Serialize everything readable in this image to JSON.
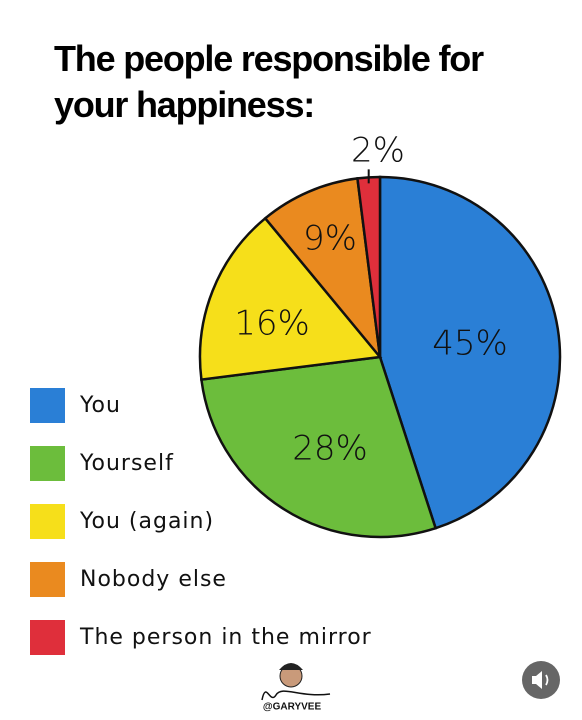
{
  "chart_data": {
    "type": "pie",
    "title": "The people responsible for your happiness:",
    "categories": [
      "You",
      "Yourself",
      "You (again)",
      "Nobody else",
      "The person in the mirror"
    ],
    "values": [
      45,
      28,
      16,
      9,
      2
    ],
    "value_labels": [
      "45%",
      "28%",
      "16%",
      "9%",
      "2%"
    ],
    "colors": [
      "#2a7fd6",
      "#6cbd3c",
      "#f6df1a",
      "#ea8a1f",
      "#df2f3b"
    ],
    "legend": "left"
  },
  "watermark": "@GARYVEE"
}
